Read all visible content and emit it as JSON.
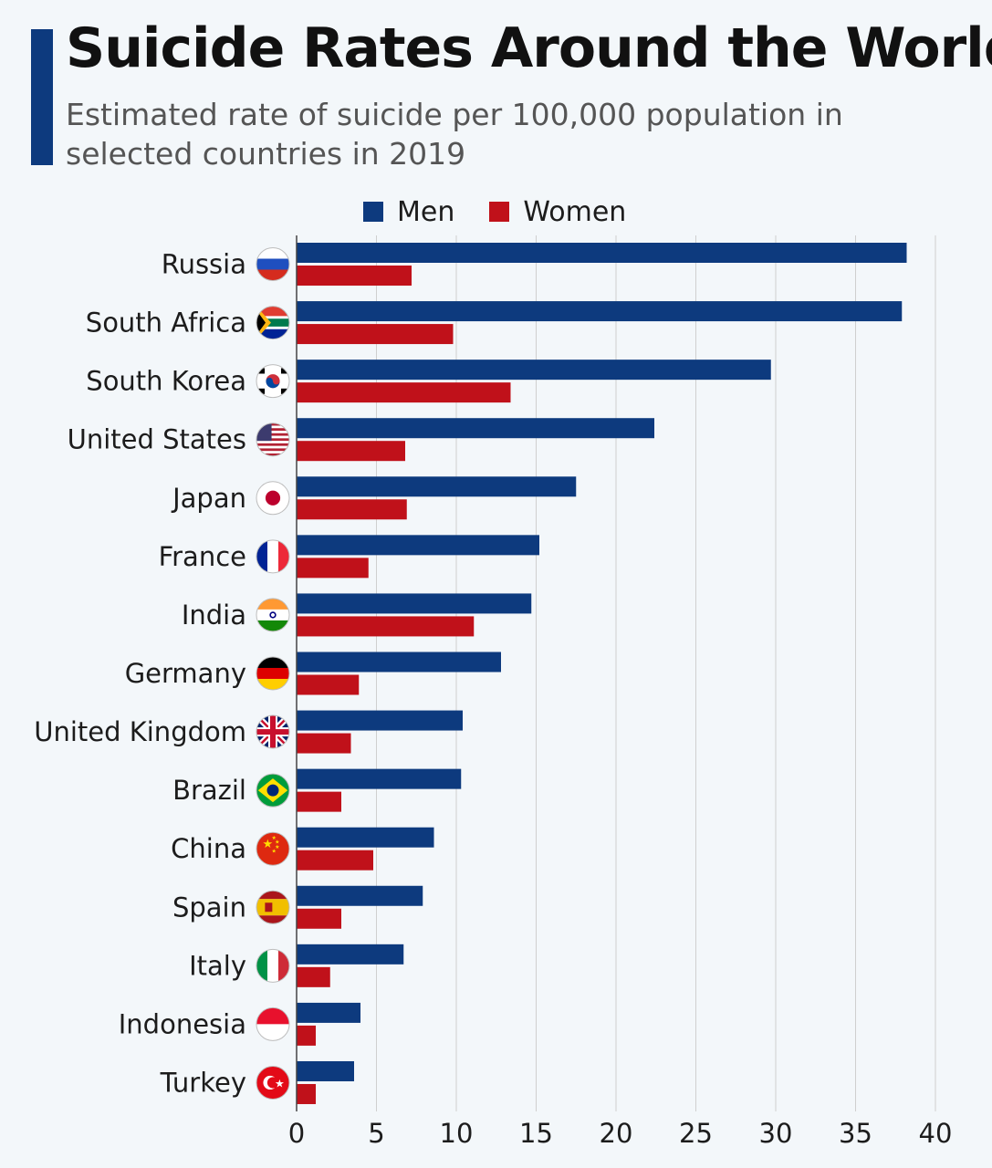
{
  "header": {
    "title": "Suicide Rates Around the World",
    "subtitle": "Estimated rate of suicide per 100,000 population in selected countries in 2019"
  },
  "colors": {
    "men": "#0d3a7e",
    "women": "#c0111a",
    "accent": "#0d3a7e",
    "grid": "#cfcfcf"
  },
  "chart_data": {
    "type": "bar",
    "orientation": "horizontal",
    "title": "Suicide Rates Around the World",
    "subtitle": "Estimated rate of suicide per 100,000 population in selected countries in 2019",
    "categories": [
      "Russia",
      "South Africa",
      "South Korea",
      "United States",
      "Japan",
      "France",
      "India",
      "Germany",
      "United Kingdom",
      "Brazil",
      "China",
      "Spain",
      "Italy",
      "Indonesia",
      "Turkey"
    ],
    "flag_icons": [
      "russia-flag-icon",
      "south-africa-flag-icon",
      "south-korea-flag-icon",
      "united-states-flag-icon",
      "japan-flag-icon",
      "france-flag-icon",
      "india-flag-icon",
      "germany-flag-icon",
      "united-kingdom-flag-icon",
      "brazil-flag-icon",
      "china-flag-icon",
      "spain-flag-icon",
      "italy-flag-icon",
      "indonesia-flag-icon",
      "turkey-flag-icon"
    ],
    "series": [
      {
        "name": "Men",
        "values": [
          38.2,
          37.9,
          29.7,
          22.4,
          17.5,
          15.2,
          14.7,
          12.8,
          10.4,
          10.3,
          8.6,
          7.9,
          6.7,
          4.0,
          3.6
        ]
      },
      {
        "name": "Women",
        "values": [
          7.2,
          9.8,
          13.4,
          6.8,
          6.9,
          4.5,
          11.1,
          3.9,
          3.4,
          2.8,
          4.8,
          2.8,
          2.1,
          1.2,
          1.2
        ]
      }
    ],
    "xlim": [
      0,
      40
    ],
    "xticks": [
      "0",
      "5",
      "10",
      "15",
      "20",
      "25",
      "30",
      "35",
      "40"
    ],
    "xlabel": "",
    "ylabel": "",
    "grid": true,
    "legend_position": "top"
  }
}
